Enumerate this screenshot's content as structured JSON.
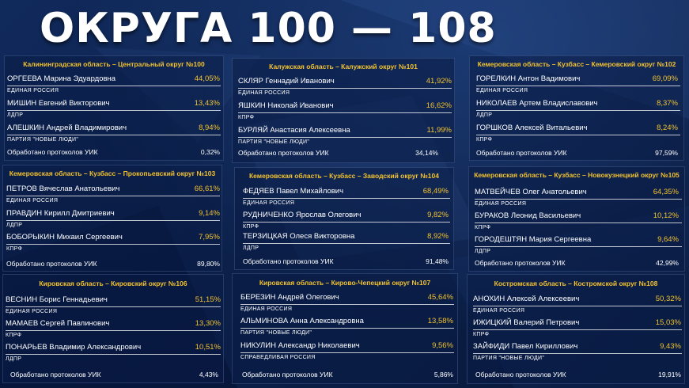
{
  "header": {
    "title": "ОКРУГА 100 — 108"
  },
  "districts": [
    {
      "title": "Калининградская область – Центральный округ №100",
      "candidates": [
        {
          "name": "ОРГЕЕВА Марина Эдуардовна",
          "pct": "44,05%",
          "party": "ЕДИНАЯ РОССИЯ"
        },
        {
          "name": "МИШИН Евгений Викторович",
          "pct": "13,43%",
          "party": "ЛДПР"
        },
        {
          "name": "АЛЕШКИН Андрей Владимирович",
          "pct": "8,94%",
          "party": "ПАРТИЯ \"НОВЫЕ ЛЮДИ\""
        }
      ],
      "protocols_label": "Обработано протоколов УИК",
      "protocols_value": "0,32%"
    },
    {
      "title": "Калужская область – Калужский округ №101",
      "candidates": [
        {
          "name": "СКЛЯР Геннадий Иванович",
          "pct": "41,92%",
          "party": "ЕДИНАЯ РОССИЯ"
        },
        {
          "name": "ЯШКИН Николай Иванович",
          "pct": "16,62%",
          "party": "КПРФ"
        },
        {
          "name": "БУРЛЯЙ Анастасия Алексеевна",
          "pct": "11,99%",
          "party": "ПАРТИЯ \"НОВЫЕ ЛЮДИ\""
        }
      ],
      "protocols_label": "Обработано протоколов УИК",
      "protocols_value": "34,14%"
    },
    {
      "title": "Кемеровская область – Кузбасс – Кемеровский округ №102",
      "candidates": [
        {
          "name": "ГОРЕЛКИН Антон Вадимович",
          "pct": "69,09%",
          "party": "ЕДИНАЯ РОССИЯ"
        },
        {
          "name": "НИКОЛАЕВ Артем Владиславович",
          "pct": "8,37%",
          "party": "ЛДПР"
        },
        {
          "name": "ГОРШКОВ Алексей Витальевич",
          "pct": "8,24%",
          "party": "КПРФ"
        }
      ],
      "protocols_label": "Обработано протоколов УИК",
      "protocols_value": "97,59%"
    },
    {
      "title": "Кемеровская область – Кузбасс – Прокопьевский округ №103",
      "candidates": [
        {
          "name": "ПЕТРОВ Вячеслав Анатольевич",
          "pct": "66,61%",
          "party": "ЕДИНАЯ РОССИЯ"
        },
        {
          "name": "ПРАВДИН Кирилл Дмитриевич",
          "pct": "9,14%",
          "party": "ЛДПР"
        },
        {
          "name": "БОБОРЫКИН Михаил Сергеевич",
          "pct": "7,95%",
          "party": "КПРФ"
        }
      ],
      "protocols_label": "Обработано протоколов УИК",
      "protocols_value": "89,80%"
    },
    {
      "title": "Кемеровская область – Кузбасс – Заводский округ №104",
      "candidates": [
        {
          "name": "ФЕДЯЕВ Павел Михайлович",
          "pct": "68,49%",
          "party": "ЕДИНАЯ РОССИЯ"
        },
        {
          "name": "РУДНИЧЕНКО Ярослав Олегович",
          "pct": "9,82%",
          "party": "КПРФ"
        },
        {
          "name": "ТЕРЗИЦКАЯ Олеся Викторовна",
          "pct": "8,92%",
          "party": "ЛДПР"
        }
      ],
      "protocols_label": "Обработано протоколов УИК",
      "protocols_value": "91,48%"
    },
    {
      "title": "Кемеровская область – Кузбасс – Новокузнецкий округ №105",
      "candidates": [
        {
          "name": "МАТВЕЙЧЕВ Олег Анатольевич",
          "pct": "64,35%",
          "party": "ЕДИНАЯ РОССИЯ"
        },
        {
          "name": "БУРАКОВ Леонид Васильевич",
          "pct": "10,12%",
          "party": "КПРФ"
        },
        {
          "name": "ГОРОДЕШТЯН Мария Сергеевна",
          "pct": "9,64%",
          "party": "ЛДПР"
        }
      ],
      "protocols_label": "Обработано протоколов УИК",
      "protocols_value": "42,99%"
    },
    {
      "title": "Кировская область – Кировский округ №106",
      "candidates": [
        {
          "name": "ВЕСНИН Борис Геннадьевич",
          "pct": "51,15%",
          "party": "ЕДИНАЯ РОССИЯ"
        },
        {
          "name": "МАМАЕВ Сергей Павлинович",
          "pct": "13,30%",
          "party": "КПРФ"
        },
        {
          "name": "ПОНАРЬЕВ Владимир Александрович",
          "pct": "10,51%",
          "party": "ЛДПР"
        }
      ],
      "protocols_label": "Обработано протоколов УИК",
      "protocols_value": "4,43%"
    },
    {
      "title": "Кировская область – Кирово-Чепецкий округ №107",
      "candidates": [
        {
          "name": "БЕРЕЗИН Андрей Олегович",
          "pct": "45,64%",
          "party": "ЕДИНАЯ РОССИЯ"
        },
        {
          "name": "АЛЬМИНОВА Анна Александровна",
          "pct": "13,58%",
          "party": "ПАРТИЯ \"НОВЫЕ ЛЮДИ\""
        },
        {
          "name": "НИКУЛИН Александр Николаевич",
          "pct": "9,56%",
          "party": "СПРАВЕДЛИВАЯ РОССИЯ"
        }
      ],
      "protocols_label": "Обработано протоколов УИК",
      "protocols_value": "5,86%"
    },
    {
      "title": "Костромская область – Костромской округ №108",
      "candidates": [
        {
          "name": "АНОХИН Алексей Алексеевич",
          "pct": "50,32%",
          "party": "ЕДИНАЯ РОССИЯ"
        },
        {
          "name": "ИЖИЦКИЙ Валерий Петрович",
          "pct": "15,03%",
          "party": "КПРФ"
        },
        {
          "name": "ЗАЙФИДИ Павел Кириллович",
          "pct": "9,43%",
          "party": "ПАРТИЯ \"НОВЫЕ ЛЮДИ\""
        }
      ],
      "protocols_label": "Обработано протоколов УИК",
      "protocols_value": "19,91%"
    }
  ]
}
